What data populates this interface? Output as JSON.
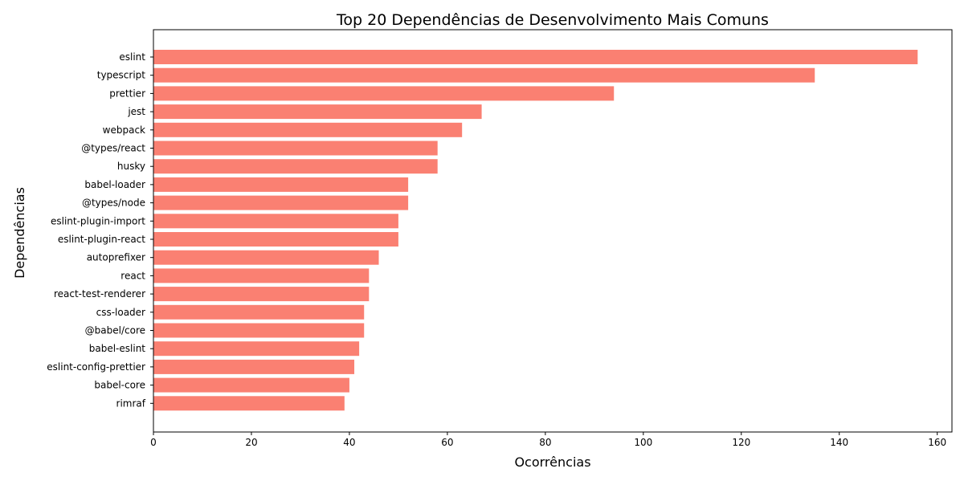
{
  "chart_data": {
    "type": "bar",
    "orientation": "horizontal",
    "title": "Top 20 Dependências de Desenvolvimento Mais Comuns",
    "xlabel": "Ocorrências",
    "ylabel": "Dependências",
    "xlim": [
      0,
      163
    ],
    "xticks": [
      "0",
      "20",
      "40",
      "60",
      "80",
      "100",
      "120",
      "140",
      "160"
    ],
    "grid": false,
    "bar_color": "#fa8072",
    "categories": [
      "eslint",
      "typescript",
      "prettier",
      "jest",
      "webpack",
      "@types/react",
      "husky",
      "babel-loader",
      "@types/node",
      "eslint-plugin-import",
      "eslint-plugin-react",
      "autoprefixer",
      "react",
      "react-test-renderer",
      "css-loader",
      "@babel/core",
      "babel-eslint",
      "eslint-config-prettier",
      "babel-core",
      "rimraf"
    ],
    "values": [
      156,
      135,
      94,
      67,
      63,
      58,
      58,
      52,
      52,
      50,
      50,
      46,
      44,
      44,
      43,
      43,
      42,
      41,
      40,
      39
    ]
  }
}
